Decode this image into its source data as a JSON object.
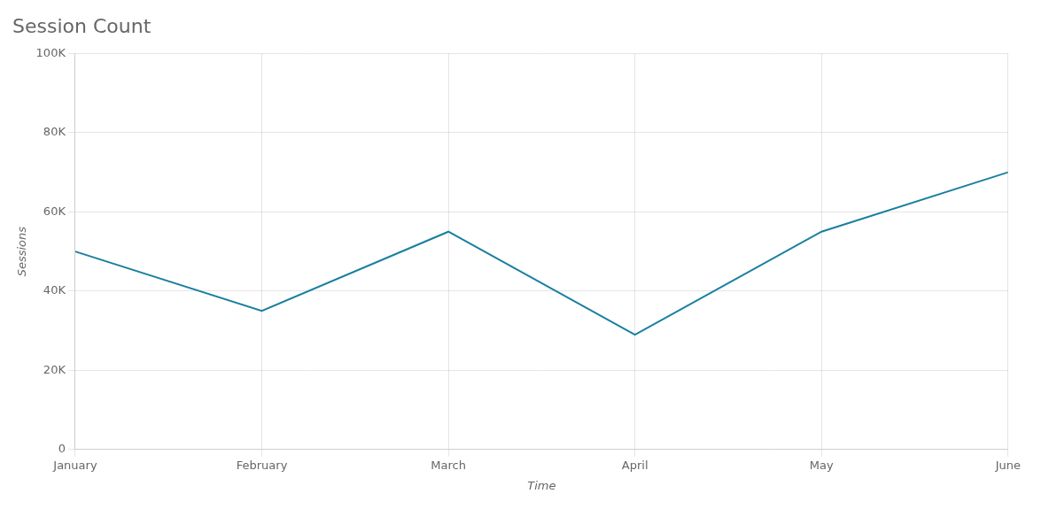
{
  "chart_data": {
    "type": "line",
    "title": "Session Count",
    "xlabel": "Time",
    "ylabel": "Sessions",
    "categories": [
      "January",
      "February",
      "March",
      "April",
      "May",
      "June"
    ],
    "values": [
      50000,
      35000,
      55000,
      29000,
      55000,
      70000
    ],
    "color": "#1a7fa0",
    "ylim": [
      0,
      100000
    ],
    "yticks": [
      0,
      {
        "value": 20000,
        "label": "20K"
      },
      {
        "value": 40000,
        "label": "40K"
      },
      {
        "value": 60000,
        "label": "60K"
      },
      {
        "value": 80000,
        "label": "80K"
      },
      {
        "value": 100000,
        "label": "100K"
      }
    ],
    "grid": true
  }
}
